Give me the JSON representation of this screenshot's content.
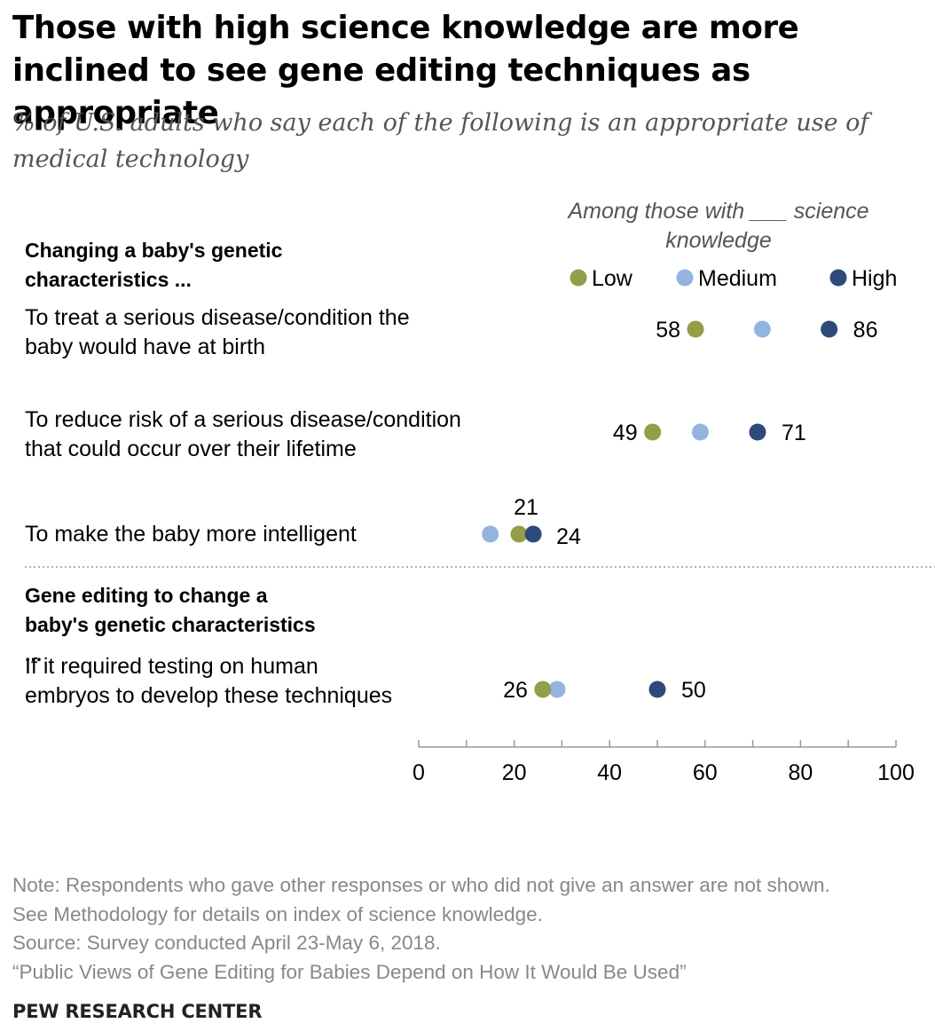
{
  "title": "Those with high science knowledge are more inclined to see gene editing techniques as appropriate",
  "subtitle": "% of U.S. adults who say each of the following is an appropriate use of medical technology",
  "chart_data": {
    "type": "scatter",
    "legend_title": "Among those with ___ science knowledge",
    "series": [
      {
        "name": "Low",
        "color": "#949D48"
      },
      {
        "name": "Medium",
        "color": "#94B4E0"
      },
      {
        "name": "High",
        "color": "#2D4A7A"
      }
    ],
    "groups": [
      {
        "heading": "Changing a baby's genetic characteristics ...",
        "items": [
          {
            "label": "To treat a serious disease/condition the baby would have at birth",
            "values": {
              "Low": 58,
              "Medium": 72,
              "High": 86
            },
            "labels": {
              "Low": "58",
              "High": "86"
            }
          },
          {
            "label": "To reduce risk of a serious disease/condition that could occur over their lifetime",
            "values": {
              "Low": 49,
              "Medium": 59,
              "High": 71
            },
            "labels": {
              "Low": "49",
              "High": "71"
            }
          },
          {
            "label": "To make the baby more intelligent",
            "values": {
              "Low": 21,
              "Medium": 15,
              "High": 24
            },
            "labels": {
              "Low": "21",
              "High": "24"
            }
          }
        ]
      },
      {
        "heading": "Gene editing to change a baby's genetic characteristics ...",
        "items": [
          {
            "label": "If it required testing on human embryos to develop these techniques",
            "values": {
              "Low": 26,
              "Medium": 29,
              "High": 50
            },
            "labels": {
              "Low": "26",
              "High": "50"
            }
          }
        ]
      }
    ],
    "xlim": [
      0,
      100
    ],
    "xticks": [
      0,
      20,
      40,
      60,
      80,
      100
    ],
    "tick_labels": [
      "0",
      "20",
      "40",
      "60",
      "80",
      "100"
    ]
  },
  "notes": [
    "Note: Respondents who gave other responses or who did not give an answer are not shown.",
    "See Methodology for details on index of science knowledge.",
    "Source: Survey conducted April 23-May 6, 2018.",
    "“Public Views of Gene Editing for Babies Depend on How It Would Be Used”"
  ],
  "brand": "PEW RESEARCH CENTER"
}
